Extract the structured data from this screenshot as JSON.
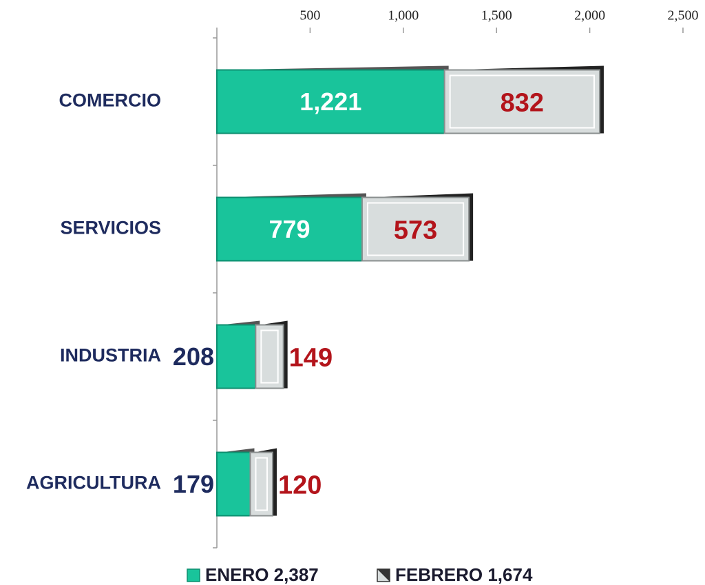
{
  "chart_data": {
    "type": "stacked_bar_horizontal",
    "categories": [
      "COMERCIO",
      "SERVICIOS",
      "INDUSTRIA",
      "AGRICULTURA"
    ],
    "series": [
      {
        "name": "ENERO 2,387",
        "color": "#19c49b",
        "values": [
          1221,
          779,
          208,
          179
        ],
        "value_labels": [
          "1,221",
          "779",
          "208",
          "179"
        ]
      },
      {
        "name": "FEBRERO 1,674",
        "color": "#d8dddd",
        "values": [
          832,
          573,
          149,
          120
        ]
      }
    ],
    "xlim": [
      0,
      2500
    ],
    "xticks": [
      500,
      {
        "value": 1000,
        "label": "1,000"
      },
      {
        "value": 1500,
        "label": "1,500"
      },
      {
        "value": 2000,
        "label": "2,000"
      },
      {
        "value": 2500,
        "label": "2,500"
      }
    ],
    "legend": "bottom"
  }
}
